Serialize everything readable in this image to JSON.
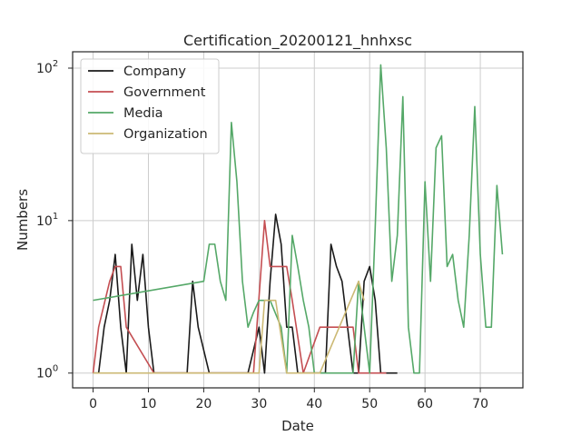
{
  "chart_data": {
    "type": "line",
    "title": "Certification_20200121_hnhxsc",
    "xlabel": "Date",
    "ylabel": "Numbers",
    "yscale": "log",
    "xlim": [
      -3.7,
      77.7
    ],
    "ylim": [
      0.8,
      128
    ],
    "xticks": [
      0,
      10,
      20,
      30,
      40,
      50,
      60,
      70
    ],
    "xtick_labels": [
      "0",
      "10",
      "20",
      "30",
      "40",
      "50",
      "60",
      "70"
    ],
    "yticks": [
      1,
      10,
      100
    ],
    "ytick_labels": [
      {
        "base": "10",
        "exp": "0"
      },
      {
        "base": "10",
        "exp": "1"
      },
      {
        "base": "10",
        "exp": "2"
      }
    ],
    "grid": true,
    "legend_position": "upper-left",
    "series": [
      {
        "name": "Company",
        "color": "#1a1a1a",
        "points": [
          [
            0,
            1
          ],
          [
            1,
            1
          ],
          [
            2,
            2
          ],
          [
            3,
            3
          ],
          [
            4,
            6
          ],
          [
            5,
            2
          ],
          [
            6,
            1
          ],
          [
            7,
            7
          ],
          [
            8,
            3
          ],
          [
            9,
            6
          ],
          [
            10,
            2
          ],
          [
            11,
            1
          ],
          [
            17,
            1
          ],
          [
            18,
            4
          ],
          [
            19,
            2
          ],
          [
            21,
            1
          ],
          [
            28,
            1
          ],
          [
            30,
            2
          ],
          [
            31,
            1
          ],
          [
            32,
            4
          ],
          [
            33,
            11
          ],
          [
            34,
            7
          ],
          [
            35,
            2
          ],
          [
            36,
            2
          ],
          [
            37,
            1
          ],
          [
            39,
            1
          ],
          [
            40,
            1
          ],
          [
            42,
            1
          ],
          [
            43,
            7
          ],
          [
            44,
            5
          ],
          [
            45,
            4
          ],
          [
            46,
            2
          ],
          [
            47,
            1
          ],
          [
            48,
            1
          ],
          [
            49,
            4
          ],
          [
            50,
            5
          ],
          [
            51,
            3
          ],
          [
            52,
            1
          ],
          [
            55,
            1
          ]
        ]
      },
      {
        "name": "Government",
        "color": "#c44e52",
        "points": [
          [
            0,
            1
          ],
          [
            1,
            2
          ],
          [
            3,
            4
          ],
          [
            4,
            5
          ],
          [
            5,
            5
          ],
          [
            6,
            2
          ],
          [
            11,
            1
          ],
          [
            29,
            1
          ],
          [
            31,
            10
          ],
          [
            32,
            5
          ],
          [
            35,
            5
          ],
          [
            36,
            3
          ],
          [
            38,
            1
          ],
          [
            41,
            2
          ],
          [
            47,
            2
          ],
          [
            48,
            1
          ],
          [
            52,
            1
          ],
          [
            53,
            1
          ]
        ]
      },
      {
        "name": "Media",
        "color": "#55a868",
        "points": [
          [
            0,
            3
          ],
          [
            20,
            4
          ],
          [
            21,
            7
          ],
          [
            22,
            7
          ],
          [
            23,
            4
          ],
          [
            24,
            3
          ],
          [
            25,
            44
          ],
          [
            26,
            18
          ],
          [
            27,
            4
          ],
          [
            28,
            2
          ],
          [
            29,
            2.5
          ],
          [
            30,
            3
          ],
          [
            32,
            3
          ],
          [
            34,
            2
          ],
          [
            35,
            1
          ],
          [
            36,
            8
          ],
          [
            37,
            5
          ],
          [
            38,
            3
          ],
          [
            39,
            2
          ],
          [
            40,
            1
          ],
          [
            41,
            1
          ],
          [
            47,
            1
          ],
          [
            48,
            4
          ],
          [
            50,
            1
          ],
          [
            51,
            9
          ],
          [
            52,
            105
          ],
          [
            53,
            30
          ],
          [
            54,
            4
          ],
          [
            55,
            8
          ],
          [
            56,
            65
          ],
          [
            57,
            2
          ],
          [
            58,
            1
          ],
          [
            59,
            1
          ],
          [
            60,
            18
          ],
          [
            61,
            4
          ],
          [
            62,
            30
          ],
          [
            63,
            36
          ],
          [
            64,
            5
          ],
          [
            65,
            6
          ],
          [
            66,
            3
          ],
          [
            67,
            2
          ],
          [
            68,
            8
          ],
          [
            69,
            56
          ],
          [
            70,
            6
          ],
          [
            71,
            2
          ],
          [
            72,
            2
          ],
          [
            73,
            17
          ],
          [
            74,
            6
          ]
        ]
      },
      {
        "name": "Organization",
        "color": "#ccb974",
        "points": [
          [
            0,
            1
          ],
          [
            30,
            1
          ],
          [
            31,
            3
          ],
          [
            33,
            3
          ],
          [
            35,
            1
          ],
          [
            39,
            1
          ],
          [
            41,
            1
          ],
          [
            48,
            4
          ],
          [
            49,
            3
          ]
        ]
      }
    ]
  }
}
